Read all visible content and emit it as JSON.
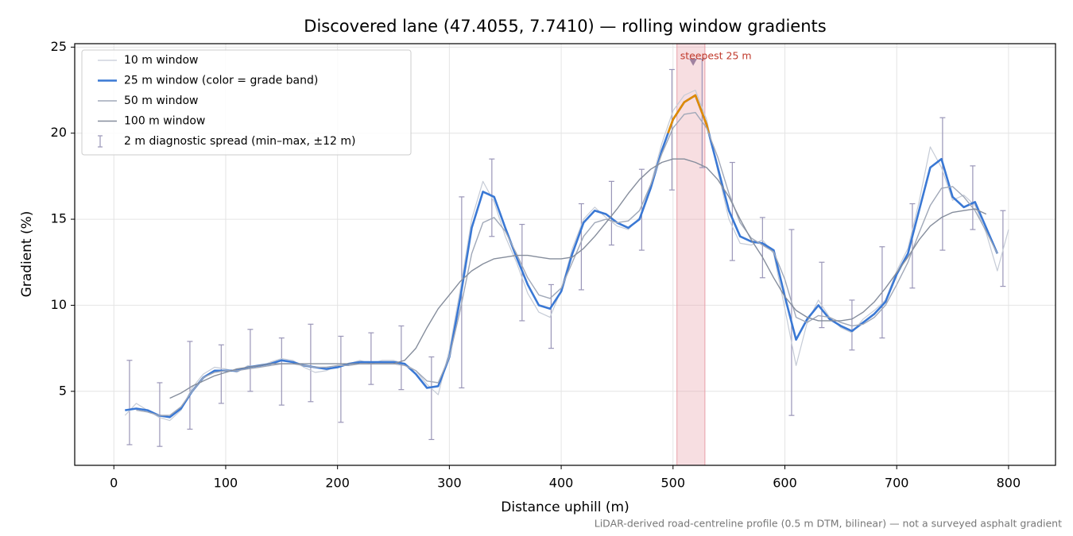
{
  "chart_data": {
    "type": "line",
    "title": "Discovered lane (47.4055, 7.7410) — rolling window gradients",
    "xlabel": "Distance uphill (m)",
    "ylabel": "Gradient (%)",
    "footnote": "LiDAR-derived road-centreline profile (0.5 m DTM, bilinear) — not a surveyed asphalt gradient",
    "xlim": [
      -35,
      842
    ],
    "ylim": [
      0.7,
      25.2
    ],
    "xticks": [
      0,
      100,
      200,
      300,
      400,
      500,
      600,
      700,
      800
    ],
    "yticks": [
      5,
      10,
      15,
      20,
      25
    ],
    "grid": true,
    "legend": "upper left",
    "x": [
      10,
      20,
      30,
      40,
      50,
      60,
      70,
      80,
      90,
      100,
      110,
      120,
      130,
      140,
      150,
      160,
      170,
      180,
      190,
      200,
      210,
      220,
      230,
      240,
      250,
      260,
      270,
      280,
      290,
      300,
      310,
      320,
      330,
      340,
      350,
      360,
      370,
      380,
      390,
      400,
      410,
      420,
      430,
      440,
      450,
      460,
      470,
      480,
      490,
      500,
      510,
      520,
      530,
      540,
      550,
      560,
      570,
      580,
      590,
      600,
      610,
      620,
      630,
      640,
      650,
      660,
      670,
      680,
      690,
      700,
      710,
      720,
      730,
      740,
      750,
      760,
      770,
      780,
      790,
      800
    ],
    "series": [
      {
        "name": "10 m window",
        "color": "#c5cbd6",
        "width": 1.2,
        "values": [
          3.6,
          4.3,
          3.9,
          3.5,
          3.3,
          3.9,
          5.2,
          6.0,
          6.4,
          6.3,
          6.1,
          6.5,
          6.4,
          6.7,
          6.9,
          6.8,
          6.4,
          6.1,
          6.2,
          6.5,
          6.6,
          6.8,
          6.6,
          6.8,
          6.8,
          6.6,
          6.2,
          5.4,
          4.8,
          7.4,
          11.0,
          15.0,
          17.2,
          16.0,
          14.0,
          12.5,
          10.7,
          9.6,
          9.3,
          10.9,
          13.3,
          15.0,
          15.7,
          15.1,
          14.6,
          14.4,
          15.1,
          17.0,
          19.4,
          21.3,
          22.2,
          22.5,
          20.8,
          17.8,
          15.0,
          13.6,
          13.5,
          13.8,
          13.0,
          9.8,
          6.5,
          9.0,
          10.3,
          9.3,
          8.7,
          8.4,
          9.2,
          9.7,
          10.3,
          12.0,
          13.3,
          16.0,
          19.2,
          18.0,
          16.1,
          16.4,
          15.8,
          14.2,
          12.0,
          14.4
        ]
      },
      {
        "name": "25 m window (color = grade band)",
        "color": "#3a78d4",
        "width": 2.6,
        "grade_band": {
          "from": 20,
          "color": "#e08a00"
        },
        "values": [
          3.9,
          4.0,
          3.9,
          3.6,
          3.5,
          4.0,
          5.0,
          5.8,
          6.2,
          6.2,
          6.2,
          6.4,
          6.5,
          6.6,
          6.8,
          6.7,
          6.5,
          6.4,
          6.3,
          6.4,
          6.6,
          6.7,
          6.7,
          6.7,
          6.7,
          6.6,
          6.0,
          5.2,
          5.3,
          7.0,
          10.5,
          14.5,
          16.6,
          16.3,
          14.5,
          12.8,
          11.2,
          10.0,
          9.8,
          10.8,
          13.0,
          14.8,
          15.5,
          15.3,
          14.8,
          14.5,
          15.0,
          16.8,
          19.0,
          20.8,
          21.8,
          22.2,
          20.5,
          18.0,
          15.5,
          14.0,
          13.7,
          13.6,
          13.2,
          10.5,
          8.0,
          9.2,
          10.0,
          9.2,
          8.8,
          8.5,
          9.0,
          9.5,
          10.2,
          11.8,
          13.0,
          15.5,
          18.0,
          18.5,
          16.3,
          15.7,
          16.0,
          14.5,
          13.0,
          null
        ]
      },
      {
        "name": "50 m window",
        "color": "#a0a8b8",
        "width": 1.4,
        "values": [
          null,
          3.9,
          3.8,
          3.6,
          3.6,
          4.1,
          5.0,
          5.8,
          6.1,
          6.2,
          6.2,
          6.3,
          6.4,
          6.5,
          6.6,
          6.6,
          6.5,
          6.4,
          6.4,
          6.5,
          6.5,
          6.6,
          6.6,
          6.6,
          6.6,
          6.5,
          6.2,
          5.6,
          5.5,
          7.0,
          9.8,
          13.0,
          14.8,
          15.1,
          14.3,
          13.0,
          11.6,
          10.6,
          10.4,
          11.0,
          12.5,
          14.0,
          14.8,
          15.0,
          14.8,
          14.9,
          15.5,
          17.0,
          18.8,
          20.3,
          21.1,
          21.2,
          20.3,
          18.6,
          16.5,
          14.8,
          13.9,
          13.5,
          13.1,
          11.5,
          9.3,
          9.0,
          9.4,
          9.3,
          9.0,
          8.8,
          8.9,
          9.3,
          10.0,
          11.2,
          12.5,
          14.2,
          15.8,
          16.8,
          16.9,
          16.3,
          15.5,
          14.3,
          13.0,
          null
        ]
      },
      {
        "name": "100 m window",
        "color": "#858d9c",
        "width": 1.4,
        "values": [
          null,
          null,
          null,
          null,
          4.6,
          4.9,
          5.3,
          5.6,
          5.9,
          6.1,
          6.3,
          6.4,
          6.5,
          6.6,
          6.6,
          6.6,
          6.6,
          6.6,
          6.6,
          6.6,
          6.6,
          6.6,
          6.6,
          6.6,
          6.6,
          6.8,
          7.5,
          8.7,
          9.8,
          10.6,
          11.4,
          12.0,
          12.4,
          12.7,
          12.8,
          12.9,
          12.9,
          12.8,
          12.7,
          12.7,
          12.8,
          13.3,
          14.0,
          14.8,
          15.6,
          16.5,
          17.3,
          17.9,
          18.3,
          18.5,
          18.5,
          18.3,
          18.0,
          17.3,
          16.3,
          15.0,
          13.8,
          12.8,
          11.6,
          10.5,
          9.7,
          9.3,
          9.1,
          9.1,
          9.1,
          9.2,
          9.6,
          10.2,
          11.0,
          11.9,
          12.8,
          13.8,
          14.6,
          15.1,
          15.4,
          15.5,
          15.6,
          15.3,
          null,
          null
        ]
      }
    ],
    "errorbars": {
      "name": "2 m diagnostic spread (min–max, ±12 m)",
      "color": "#9a96b8",
      "x": [
        14,
        41,
        68,
        96,
        122,
        150,
        176,
        203,
        230,
        257,
        284,
        311,
        338,
        365,
        391,
        418,
        445,
        472,
        499,
        526,
        553,
        580,
        606,
        633,
        660,
        687,
        714,
        741,
        768,
        795
      ],
      "low": [
        1.9,
        1.8,
        2.8,
        4.3,
        5.0,
        4.2,
        4.4,
        3.2,
        5.4,
        5.1,
        2.2,
        5.2,
        14.0,
        9.1,
        7.5,
        10.9,
        13.5,
        13.2,
        16.7,
        18.0,
        12.6,
        11.6,
        3.6,
        8.7,
        7.4,
        8.1,
        11.0,
        13.2,
        14.4,
        11.1
      ],
      "high": [
        6.8,
        5.5,
        7.9,
        7.7,
        8.6,
        8.1,
        8.9,
        8.2,
        8.4,
        8.8,
        7.0,
        16.3,
        18.5,
        14.7,
        11.2,
        15.9,
        17.2,
        17.9,
        23.7,
        24.3,
        18.3,
        15.1,
        14.4,
        12.5,
        10.3,
        13.4,
        15.9,
        20.9,
        18.1,
        15.5
      ]
    },
    "highlight": {
      "xlim": [
        503.5,
        528.5
      ],
      "color": "#e8a0a8",
      "label": "steepest 25 m",
      "label_color": "#c0392b",
      "marker": [
        518,
        24.1
      ]
    }
  }
}
